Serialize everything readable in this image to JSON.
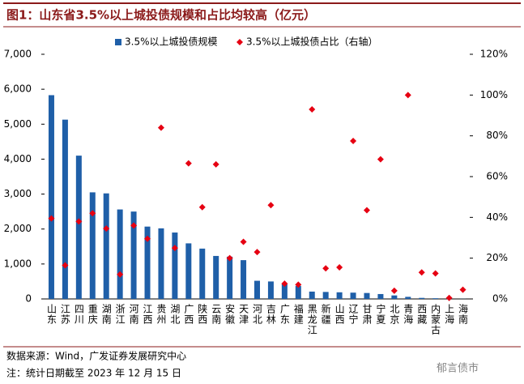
{
  "chart_data": {
    "type": "bar",
    "title": "图1：山东省3.5%以上城投债规模和占比均较高（亿元）",
    "source": "数据来源：Wind，广发证券发展研究中心",
    "note": "注：统计日期截至 2023 年 12 月 15 日",
    "watermark": "郁言债市",
    "categories": [
      "山东",
      "江苏",
      "四川",
      "重庆",
      "湖南",
      "浙江",
      "河南",
      "江西",
      "贵州",
      "湖北",
      "广西",
      "陕西",
      "云南",
      "安徽",
      "天津",
      "河北",
      "吉林",
      "广东",
      "福建",
      "黑龙江",
      "新疆",
      "山西",
      "辽宁",
      "甘肃",
      "宁夏",
      "北京",
      "青海",
      "西藏",
      "内蒙古",
      "上海",
      "海南"
    ],
    "series": [
      {
        "name": "3.5%以上城投债规模",
        "type": "bar",
        "color": "#1f5fa8",
        "values": [
          5830,
          5130,
          4100,
          3050,
          3020,
          2560,
          2500,
          2070,
          2020,
          1900,
          1590,
          1440,
          1230,
          1210,
          1110,
          520,
          500,
          420,
          370,
          210,
          200,
          190,
          180,
          170,
          140,
          100,
          60,
          30,
          20,
          5,
          3
        ]
      },
      {
        "name": "3.5%以上城投债占比（右轴）",
        "type": "scatter",
        "axis": "y2",
        "color": "#e60012",
        "values": [
          39.5,
          16.5,
          38,
          42,
          34.5,
          12,
          36,
          29.5,
          84,
          25,
          66.5,
          45,
          66,
          20,
          28,
          23,
          46,
          7.5,
          7,
          93,
          15,
          15.5,
          77.5,
          43.5,
          68.5,
          4,
          100,
          13,
          12.5,
          0.5,
          4.5
        ]
      }
    ],
    "ylim": [
      0,
      7000
    ],
    "yticks": [
      0,
      {
        "value": 1000,
        "label": "1,000"
      },
      {
        "value": 2000,
        "label": "2,000"
      },
      {
        "value": 3000,
        "label": "3,000"
      },
      {
        "value": 4000,
        "label": "4,000"
      },
      {
        "value": 5000,
        "label": "5,000"
      },
      {
        "value": 6000,
        "label": "6,000"
      },
      {
        "value": 7000,
        "label": "7,000"
      }
    ],
    "y2lim": [
      0,
      120
    ],
    "y2ticks": [
      {
        "value": 0,
        "label": "0%"
      },
      {
        "value": 20,
        "label": "20%"
      },
      {
        "value": 40,
        "label": "40%"
      },
      {
        "value": 60,
        "label": "60%"
      },
      {
        "value": 80,
        "label": "80%"
      },
      {
        "value": 100,
        "label": "100%"
      },
      {
        "value": 120,
        "label": "120%"
      }
    ],
    "legend": "top"
  }
}
